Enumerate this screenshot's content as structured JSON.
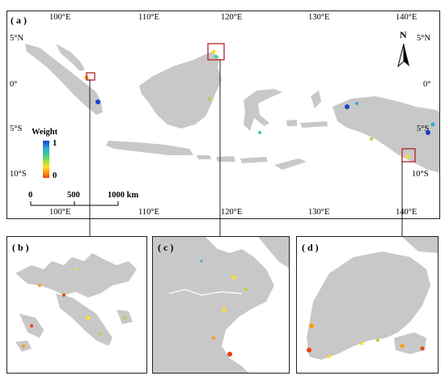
{
  "panels": {
    "a": "( a )",
    "b": "( b )",
    "c": "( c )",
    "d": "( d )"
  },
  "lon_top": [
    "100°E",
    "110°E",
    "120°E",
    "130°E",
    "140°E"
  ],
  "lon_bottom": [
    "100°E",
    "110°E",
    "120°E",
    "130°E",
    "140°E"
  ],
  "lat_left": [
    "5°N",
    "0°",
    "5°S",
    "10°S"
  ],
  "lat_right": [
    "5°N",
    "0°",
    "5°S",
    "10°S"
  ],
  "north_arrow": {
    "label": "N",
    "icon": "north-arrow-icon"
  },
  "legend": {
    "title": "Weight",
    "max": "1",
    "min": "0",
    "colors": [
      "#1a3fd0",
      "#2fa8d8",
      "#3fcf8a",
      "#a8d840",
      "#ffe020",
      "#ff9a10",
      "#e84010"
    ]
  },
  "scalebar": {
    "ticks": [
      "0",
      "500",
      "1000 km"
    ]
  },
  "colors": {
    "land": "#c8c8c8",
    "frame": "#222222",
    "highlight": "#b22222"
  }
}
